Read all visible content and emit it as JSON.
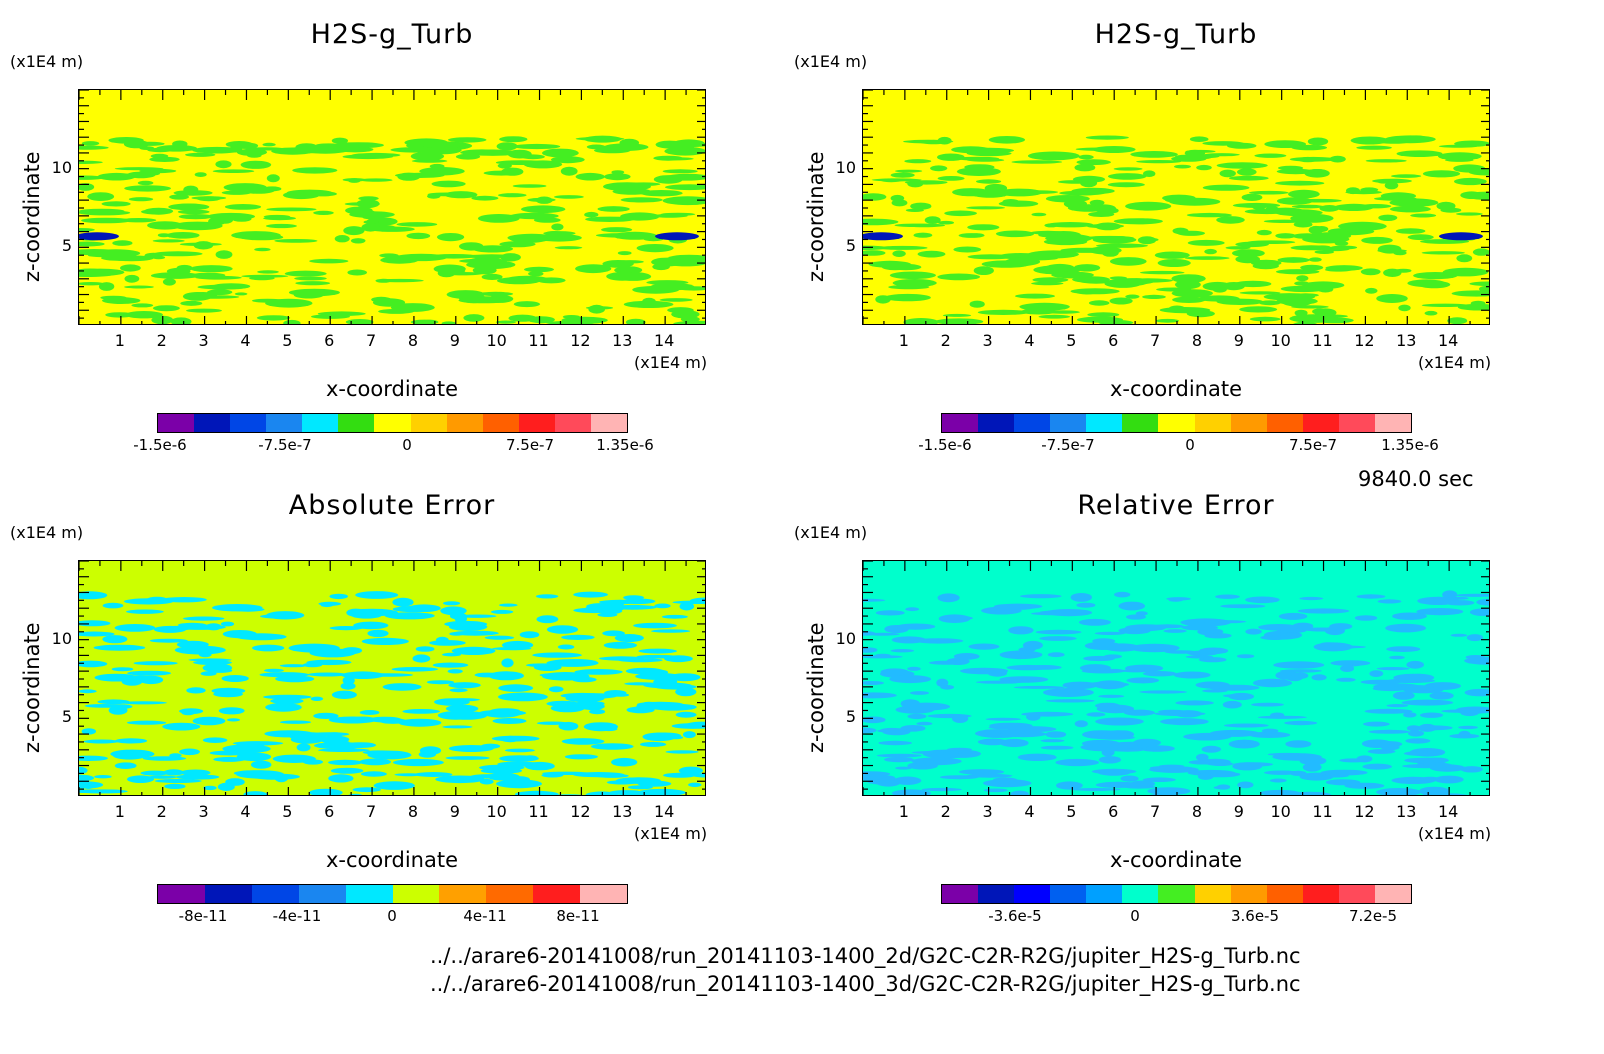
{
  "time_label": "9840.0 sec",
  "file_paths": [
    "../../arare6-20141008/run_20141103-1400_2d/G2C-C2R-R2G/jupiter_H2S-g_Turb.nc",
    "../../arare6-20141008/run_20141103-1400_3d/G2C-C2R-R2G/jupiter_H2S-g_Turb.nc"
  ],
  "chart_data": [
    {
      "type": "heatmap",
      "title": "H2S-g_Turb",
      "xlabel": "x-coordinate",
      "ylabel": "z-coordinate",
      "x_unit": "(x1E4 m)",
      "y_unit": "(x1E4 m)",
      "xlim": [
        0,
        15
      ],
      "ylim": [
        0,
        15
      ],
      "x_ticks": [
        "1",
        "2",
        "3",
        "4",
        "5",
        "6",
        "7",
        "8",
        "9",
        "10",
        "11",
        "12",
        "13",
        "14"
      ],
      "y_ticks": [
        "5",
        "10"
      ],
      "colorbar_ticks": [
        "-1.5e-6",
        "-7.5e-7",
        "0",
        "7.5e-7",
        "1.35e-6"
      ],
      "colorbar_colors": [
        "#7b00a8",
        "#0016b8",
        "#0046e6",
        "#1a86f0",
        "#00e8ff",
        "#33dd11",
        "#ffff00",
        "#ffd000",
        "#ff9a00",
        "#ff6000",
        "#ff1e1e",
        "#ff4a5a",
        "#ffb4b4"
      ],
      "background_color": "#ffff00",
      "pattern_color": "#44ee22"
    },
    {
      "type": "heatmap",
      "title": "H2S-g_Turb",
      "xlabel": "x-coordinate",
      "ylabel": "z-coordinate",
      "x_unit": "(x1E4 m)",
      "y_unit": "(x1E4 m)",
      "xlim": [
        0,
        15
      ],
      "ylim": [
        0,
        15
      ],
      "x_ticks": [
        "1",
        "2",
        "3",
        "4",
        "5",
        "6",
        "7",
        "8",
        "9",
        "10",
        "11",
        "12",
        "13",
        "14"
      ],
      "y_ticks": [
        "5",
        "10"
      ],
      "colorbar_ticks": [
        "-1.5e-6",
        "-7.5e-7",
        "0",
        "7.5e-7",
        "1.35e-6"
      ],
      "colorbar_colors": [
        "#7b00a8",
        "#0016b8",
        "#0046e6",
        "#1a86f0",
        "#00e8ff",
        "#33dd11",
        "#ffff00",
        "#ffd000",
        "#ff9a00",
        "#ff6000",
        "#ff1e1e",
        "#ff4a5a",
        "#ffb4b4"
      ],
      "background_color": "#ffff00",
      "pattern_color": "#44ee22"
    },
    {
      "type": "heatmap",
      "title": "Absolute Error",
      "xlabel": "x-coordinate",
      "ylabel": "z-coordinate",
      "x_unit": "(x1E4 m)",
      "y_unit": "(x1E4 m)",
      "xlim": [
        0,
        15
      ],
      "ylim": [
        0,
        15
      ],
      "x_ticks": [
        "1",
        "2",
        "3",
        "4",
        "5",
        "6",
        "7",
        "8",
        "9",
        "10",
        "11",
        "12",
        "13",
        "14"
      ],
      "y_ticks": [
        "5",
        "10"
      ],
      "colorbar_ticks": [
        "-8e-11",
        "-4e-11",
        "0",
        "4e-11",
        "8e-11"
      ],
      "colorbar_colors": [
        "#7b00a8",
        "#0016b8",
        "#0046e6",
        "#1a86f0",
        "#00e8ff",
        "#ccff00",
        "#ffa000",
        "#ff6a00",
        "#ff1e1e",
        "#ffb4b4"
      ],
      "background_color": "#ccff00",
      "pattern_color": "#00e8ff"
    },
    {
      "type": "heatmap",
      "title": "Relative Error",
      "xlabel": "x-coordinate",
      "ylabel": "z-coordinate",
      "x_unit": "(x1E4 m)",
      "y_unit": "(x1E4 m)",
      "xlim": [
        0,
        15
      ],
      "ylim": [
        0,
        15
      ],
      "x_ticks": [
        "1",
        "2",
        "3",
        "4",
        "5",
        "6",
        "7",
        "8",
        "9",
        "10",
        "11",
        "12",
        "13",
        "14"
      ],
      "y_ticks": [
        "5",
        "10"
      ],
      "colorbar_ticks": [
        "-3.6e-5",
        "0",
        "3.6e-5",
        "7.2e-5"
      ],
      "colorbar_colors": [
        "#7b00a8",
        "#0016b8",
        "#0000ff",
        "#0060f0",
        "#00a0ff",
        "#00ffcc",
        "#44ee22",
        "#ffd000",
        "#ff9a00",
        "#ff6000",
        "#ff1e1e",
        "#ff4a5a",
        "#ffb4b4"
      ],
      "background_color": "#00ffcc",
      "pattern_color": "#22bbff"
    }
  ]
}
